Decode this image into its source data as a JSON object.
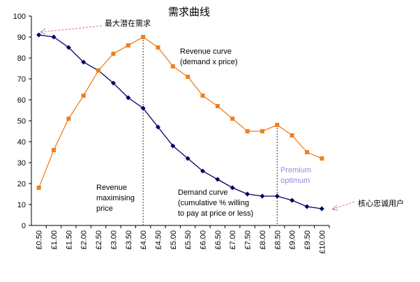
{
  "chart_data": {
    "type": "line",
    "title": "需求曲线",
    "categories": [
      "£0.50",
      "£1.00",
      "£1.50",
      "£2.00",
      "£2.50",
      "£3.00",
      "£3.50",
      "£4.00",
      "£4.50",
      "£5.00",
      "£5.50",
      "£6.00",
      "£6.50",
      "£7.00",
      "£7.50",
      "£8.00",
      "£8.50",
      "£9.00",
      "£9.50",
      "£10.00"
    ],
    "series": [
      {
        "color": "#000066",
        "marker": "diamond",
        "values": [
          91,
          90,
          85,
          78,
          74,
          68,
          61,
          56,
          47,
          38,
          32,
          26,
          22,
          18,
          15,
          14,
          14,
          12,
          9,
          8
        ]
      },
      {
        "color": "#f07f1e",
        "marker": "square",
        "values": [
          18,
          36,
          51,
          62,
          74,
          82,
          86,
          90,
          85,
          76,
          71,
          62,
          57,
          51,
          45,
          45,
          48,
          43,
          35,
          32
        ]
      }
    ],
    "ylim": [
      0,
      100
    ],
    "yticks": [
      0,
      10,
      20,
      30,
      40,
      50,
      60,
      70,
      80,
      90,
      100
    ],
    "grid": false,
    "reference_lines": [
      "£4.00",
      "£8.50"
    ],
    "annotations": [
      [
        "最大潜在需求"
      ],
      [
        "核心忠诚用户"
      ],
      [
        "Revenue curve",
        "(demand x price)"
      ],
      [
        "Revenue",
        "maximising",
        "price"
      ],
      [
        "Demand curve",
        "(cumulative % willing",
        "to pay at price or less)"
      ],
      [
        "Premium",
        "optimum"
      ]
    ]
  }
}
